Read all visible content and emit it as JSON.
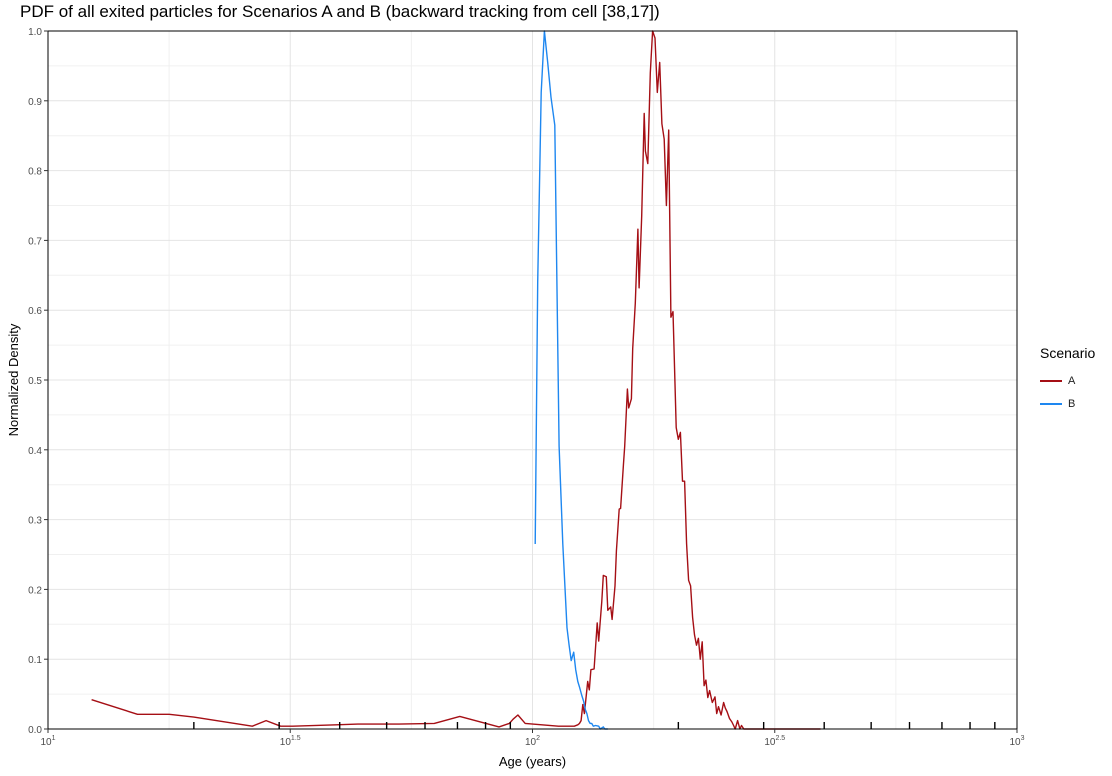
{
  "chart_data": {
    "type": "line",
    "title": "PDF of all exited particles for Scenarios A and B (backward tracking from cell [38,17])",
    "xlabel": "Age (years)",
    "ylabel": "Normalized Density",
    "xscale": "log10",
    "xlim": [
      10,
      1000
    ],
    "ylim": [
      0,
      1.0
    ],
    "x_tick_labels": [
      {
        "value": 10,
        "base": "10",
        "exp": "1"
      },
      {
        "value": 31.62,
        "base": "10",
        "exp": "1.5"
      },
      {
        "value": 100,
        "base": "10",
        "exp": "2"
      },
      {
        "value": 316.23,
        "base": "10",
        "exp": "2.5"
      },
      {
        "value": 1000,
        "base": "10",
        "exp": "3"
      }
    ],
    "y_ticks": [
      0.0,
      0.1,
      0.2,
      0.3,
      0.4,
      0.5,
      0.6,
      0.7,
      0.8,
      0.9,
      1.0
    ],
    "y_tick_labels": [
      "0.0",
      "0.1",
      "0.2",
      "0.3",
      "0.4",
      "0.5",
      "0.6",
      "0.7",
      "0.8",
      "0.9",
      "1.0"
    ],
    "grid": true,
    "legend": {
      "title": "Scenario",
      "position": "right"
    },
    "series": [
      {
        "name": "A",
        "color": "#a50f15",
        "x": [
          12.3,
          15.3,
          17.8,
          20.0,
          26.4,
          28.2,
          30.2,
          32.0,
          39.4,
          43.6,
          53.0,
          62.7,
          70.8,
          85.3,
          89.6,
          91.2,
          93.3,
          96.6,
          113.1,
          119.0,
          122.0,
          124.0,
          125.0,
          126.0,
          127.0,
          128.0,
          130.0,
          131.0,
          132.0,
          134.0,
          136.0,
          137.0,
          139.0,
          140.0,
          142.0,
          143.0,
          145.0,
          146.0,
          148.0,
          149.0,
          151.0,
          152.0,
          154.0,
          155.0,
          157.0,
          158.0,
          160.0,
          161.0,
          163.0,
          165.0,
          166.0,
          168.0,
          170.0,
          171.0,
          173.0,
          175.0,
          177.0,
          179.0,
          181.0,
          183.0,
          185.0,
          187.0,
          189.0,
          191.0,
          193.0,
          195.0,
          198.0,
          200.0,
          202.0,
          204.0,
          206.0,
          208.0,
          210.0,
          212.0,
          214.0,
          216.0,
          218.0,
          220.0,
          222.0,
          224.0,
          226.0,
          228.0,
          230.0,
          232.0,
          235.0,
          238.0,
          240.0,
          242.0,
          245.0,
          248.0,
          250.0,
          252.0,
          255.0,
          258.0,
          260.0,
          262.0,
          265.0,
          268.0,
          270.0,
          273.0,
          276.0,
          279.0,
          282.0,
          285.0,
          288.0,
          291.0,
          294.0,
          297.0,
          300.0,
          303.0,
          306.0,
          309.0,
          312.0,
          315.0,
          318.0,
          321.0,
          324.0,
          327.0,
          330.0,
          333.0,
          336.0,
          339.0,
          342.0,
          345.0,
          348.0,
          351.0,
          354.0,
          357.0,
          360.0,
          363.0,
          366.0,
          369.0,
          372.0,
          375.0,
          378.0,
          381.0,
          384.0,
          387.0,
          390.0,
          393.0
        ],
        "values": [
          0.042,
          0.021,
          0.021,
          0.017,
          0.004,
          0.012,
          0.004,
          0.004,
          0.006,
          0.007,
          0.007,
          0.008,
          0.018,
          0.003,
          0.008,
          0.014,
          0.02,
          0.008,
          0.004,
          0.004,
          0.004,
          0.006,
          0.008,
          0.012,
          0.035,
          0.022,
          0.068,
          0.056,
          0.085,
          0.086,
          0.152,
          0.126,
          0.183,
          0.22,
          0.218,
          0.17,
          0.175,
          0.157,
          0.205,
          0.255,
          0.315,
          0.316,
          0.378,
          0.405,
          0.487,
          0.46,
          0.473,
          0.545,
          0.61,
          0.716,
          0.632,
          0.735,
          0.882,
          0.828,
          0.81,
          0.94,
          1.0,
          0.99,
          0.912,
          0.955,
          0.867,
          0.845,
          0.75,
          0.858,
          0.59,
          0.598,
          0.432,
          0.415,
          0.425,
          0.355,
          0.355,
          0.265,
          0.213,
          0.205,
          0.16,
          0.135,
          0.12,
          0.13,
          0.1,
          0.125,
          0.062,
          0.07,
          0.045,
          0.055,
          0.038,
          0.046,
          0.022,
          0.032,
          0.02,
          0.038,
          0.03,
          0.025,
          0.015,
          0.01,
          0.005,
          0.0,
          0.012,
          0.0,
          0.005,
          0.0,
          0.0,
          0.0,
          0.0,
          0.0,
          0.0,
          0.0,
          0.0,
          0.0,
          0.0,
          0.0,
          0.0,
          0.0,
          0.0,
          0.0,
          0.0,
          0.0,
          0.0,
          0.0,
          0.0,
          0.0,
          0.0,
          0.0,
          0.0,
          0.0,
          0.0,
          0.0,
          0.0,
          0.0,
          0.0,
          0.0,
          0.0,
          0.0,
          0.0,
          0.0,
          0.0,
          0.0,
          0.0,
          0.0,
          0.0,
          0.0
        ]
      },
      {
        "name": "B",
        "color": "#1e87f0",
        "x": [
          101.3,
          102.5,
          104.2,
          105.8,
          107.5,
          109.2,
          111.2,
          113.5,
          115.5,
          117.8,
          119.0,
          120.2,
          121.6,
          122.8,
          124.0,
          125.0,
          126.4,
          127.5,
          128.5,
          129.5,
          130.5,
          131.5,
          132.5,
          133.5,
          135.0,
          137.0,
          138.0,
          140.0,
          141.0,
          143.0
        ],
        "values": [
          0.265,
          0.64,
          0.912,
          1.0,
          0.955,
          0.905,
          0.865,
          0.405,
          0.265,
          0.145,
          0.12,
          0.098,
          0.11,
          0.085,
          0.068,
          0.06,
          0.048,
          0.04,
          0.028,
          0.022,
          0.012,
          0.008,
          0.008,
          0.004,
          0.005,
          0.004,
          0.0,
          0.003,
          0.0,
          0.0
        ]
      }
    ]
  }
}
